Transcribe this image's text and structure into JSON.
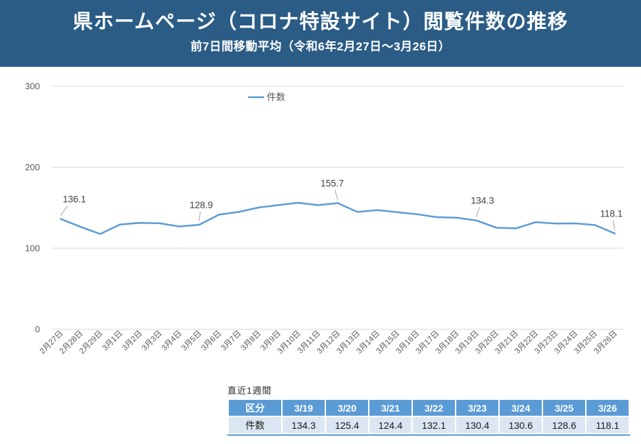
{
  "header": {
    "title": "県ホームページ（コロナ特設サイト）閲覧件数の推移",
    "subtitle": "前7日間移動平均（令和6年2月27日～3月26日）",
    "bg_color": "#2b5c86",
    "text_color": "#ffffff"
  },
  "chart_data": {
    "type": "line",
    "title": "",
    "xlabel": "",
    "ylabel": "",
    "categories": [
      "2月27日",
      "2月28日",
      "2月29日",
      "3月1日",
      "3月2日",
      "3月3日",
      "3月4日",
      "3月5日",
      "3月6日",
      "3月7日",
      "3月8日",
      "3月9日",
      "3月10日",
      "3月11日",
      "3月12日",
      "3月13日",
      "3月14日",
      "3月15日",
      "3月16日",
      "3月17日",
      "3月18日",
      "3月19日",
      "3月20日",
      "3月21日",
      "3月22日",
      "3月23日",
      "3月24日",
      "3月25日",
      "3月26日"
    ],
    "series": [
      {
        "name": "件数",
        "values": [
          136.1,
          126.5,
          117.5,
          129.3,
          131.3,
          130.7,
          126.8,
          128.9,
          141.4,
          144.8,
          150.2,
          153.2,
          156.1,
          153.2,
          155.7,
          144.8,
          147.0,
          144.5,
          142.0,
          138.3,
          137.7,
          134.3,
          125.4,
          124.4,
          132.1,
          130.4,
          130.6,
          128.6,
          118.1
        ]
      }
    ],
    "labeled_points": [
      {
        "index": 0,
        "label": "136.1"
      },
      {
        "index": 7,
        "label": "128.9"
      },
      {
        "index": 14,
        "label": "155.7"
      },
      {
        "index": 21,
        "label": "134.3"
      },
      {
        "index": 28,
        "label": "118.1"
      }
    ],
    "ylim": [
      0,
      300
    ],
    "yticks": [
      0,
      100,
      200,
      300
    ],
    "grid": true,
    "legend_position": "top-center",
    "line_color": "#5b9bd5",
    "gridline_color": "#d9d9d9",
    "data_label_color": "#404040",
    "axis_text_color": "#595959",
    "leader_line_color": "#a6a6a6"
  },
  "table": {
    "caption": "直近1週間",
    "header_row": [
      "区分",
      "3/19",
      "3/20",
      "3/21",
      "3/22",
      "3/23",
      "3/24",
      "3/25",
      "3/26"
    ],
    "rows": [
      [
        "件数",
        "134.3",
        "125.4",
        "124.4",
        "132.1",
        "130.4",
        "130.6",
        "128.6",
        "118.1"
      ]
    ],
    "header_bg": "#5b9bd5",
    "row_bg": "#dce6f2",
    "accent_color": "#5b9bd5"
  }
}
